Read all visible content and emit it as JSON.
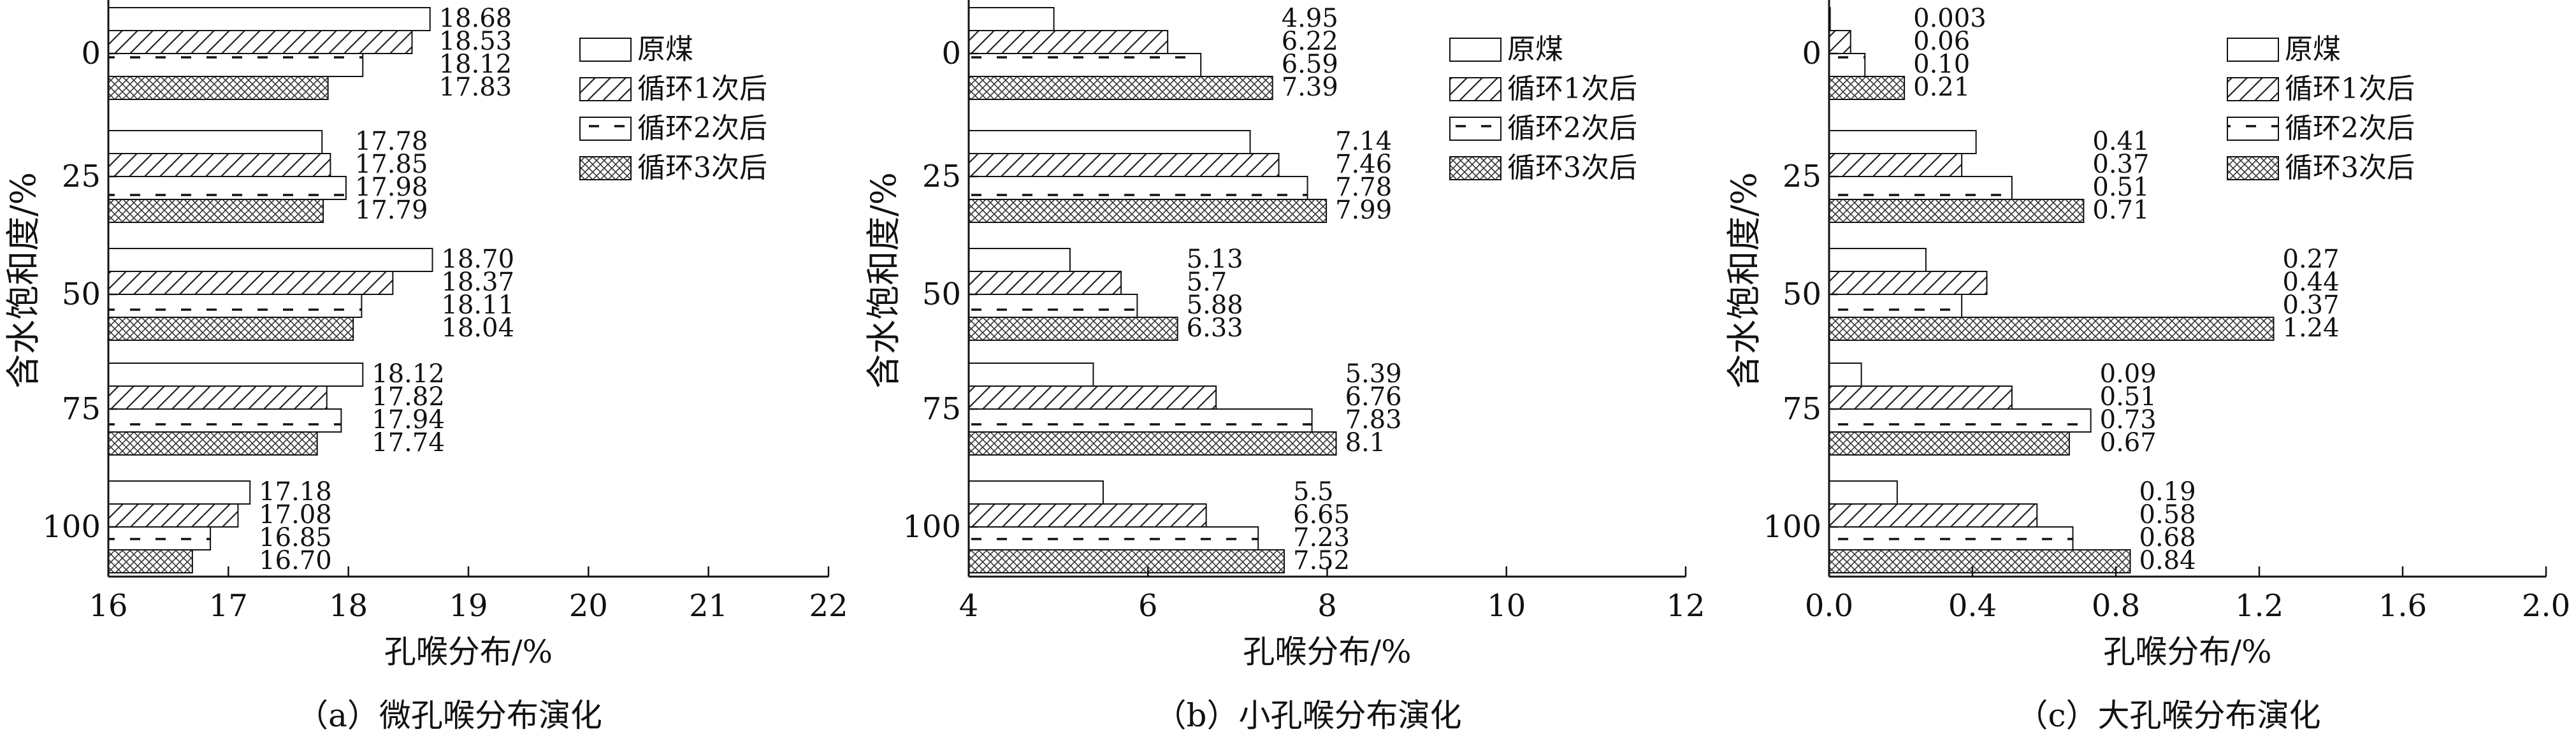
{
  "chart_data": [
    {
      "type": "bar",
      "orientation": "horizontal",
      "categories": [
        "0",
        "25",
        "50",
        "75",
        "100"
      ],
      "ylabel": "含水饱和度/%",
      "xlabel": "孔喉分布/%",
      "caption": "（a）微孔喉分布演化",
      "xlim": [
        16,
        22
      ],
      "xticks": [
        "16",
        "17",
        "18",
        "19",
        "20",
        "21",
        "22"
      ],
      "legend": "top-right",
      "series": [
        {
          "name": "原煤",
          "pattern": "none",
          "values": [
            18.68,
            17.78,
            18.7,
            18.12,
            17.18
          ],
          "labels": [
            "18.68",
            "17.78",
            "18.70",
            "18.12",
            "17.18"
          ]
        },
        {
          "name": "循环1次后",
          "pattern": "diagonal",
          "values": [
            18.53,
            17.85,
            18.37,
            17.82,
            17.08
          ],
          "labels": [
            "18.53",
            "17.85",
            "18.37",
            "17.82",
            "17.08"
          ]
        },
        {
          "name": "循环2次后",
          "pattern": "dashes",
          "values": [
            18.12,
            17.98,
            18.11,
            17.94,
            16.85
          ],
          "labels": [
            "18.12",
            "17.98",
            "18.11",
            "17.94",
            "16.85"
          ]
        },
        {
          "name": "循环3次后",
          "pattern": "crosshatch",
          "values": [
            17.83,
            17.79,
            18.04,
            17.74,
            16.7
          ],
          "labels": [
            "17.83",
            "17.79",
            "18.04",
            "17.74",
            "16.70"
          ]
        }
      ]
    },
    {
      "type": "bar",
      "orientation": "horizontal",
      "categories": [
        "0",
        "25",
        "50",
        "75",
        "100"
      ],
      "ylabel": "含水饱和度/%",
      "xlabel": "孔喉分布/%",
      "caption": "（b）小孔喉分布演化",
      "xlim": [
        4,
        12
      ],
      "xticks": [
        "4",
        "6",
        "8",
        "10",
        "12"
      ],
      "legend": "top-right",
      "series": [
        {
          "name": "原煤",
          "pattern": "none",
          "values": [
            4.95,
            7.14,
            5.13,
            5.39,
            5.5
          ],
          "labels": [
            "4.95",
            "7.14",
            "5.13",
            "5.39",
            "5.5"
          ]
        },
        {
          "name": "循环1次后",
          "pattern": "diagonal",
          "values": [
            6.22,
            7.46,
            5.7,
            6.76,
            6.65
          ],
          "labels": [
            "6.22",
            "7.46",
            "5.7",
            "6.76",
            "6.65"
          ]
        },
        {
          "name": "循环2次后",
          "pattern": "dashes",
          "values": [
            6.59,
            7.78,
            5.88,
            7.83,
            7.23
          ],
          "labels": [
            "6.59",
            "7.78",
            "5.88",
            "7.83",
            "7.23"
          ]
        },
        {
          "name": "循环3次后",
          "pattern": "crosshatch",
          "values": [
            7.39,
            7.99,
            6.33,
            8.1,
            7.52
          ],
          "labels": [
            "7.39",
            "7.99",
            "6.33",
            "8.1",
            "7.52"
          ]
        }
      ]
    },
    {
      "type": "bar",
      "orientation": "horizontal",
      "categories": [
        "0",
        "25",
        "50",
        "75",
        "100"
      ],
      "ylabel": "含水饱和度/%",
      "xlabel": "孔喉分布/%",
      "caption": "（c）大孔喉分布演化",
      "xlim": [
        0,
        2.0
      ],
      "xticks": [
        "0.0",
        "0.4",
        "0.8",
        "1.2",
        "1.6",
        "2.0"
      ],
      "legend": "top-right",
      "series": [
        {
          "name": "原煤",
          "pattern": "none",
          "values": [
            0.003,
            0.41,
            0.27,
            0.09,
            0.19
          ],
          "labels": [
            "0.003",
            "0.41",
            "0.27",
            "0.09",
            "0.19"
          ]
        },
        {
          "name": "循环1次后",
          "pattern": "diagonal",
          "values": [
            0.06,
            0.37,
            0.44,
            0.51,
            0.58
          ],
          "labels": [
            "0.06",
            "0.37",
            "0.44",
            "0.51",
            "0.58"
          ]
        },
        {
          "name": "循环2次后",
          "pattern": "dashes",
          "values": [
            0.1,
            0.51,
            0.37,
            0.73,
            0.68
          ],
          "labels": [
            "0.10",
            "0.51",
            "0.37",
            "0.73",
            "0.68"
          ]
        },
        {
          "name": "循环3次后",
          "pattern": "crosshatch",
          "values": [
            0.21,
            0.71,
            1.24,
            0.67,
            0.84
          ],
          "labels": [
            "0.21",
            "0.71",
            "1.24",
            "0.67",
            "0.84"
          ]
        }
      ]
    }
  ]
}
